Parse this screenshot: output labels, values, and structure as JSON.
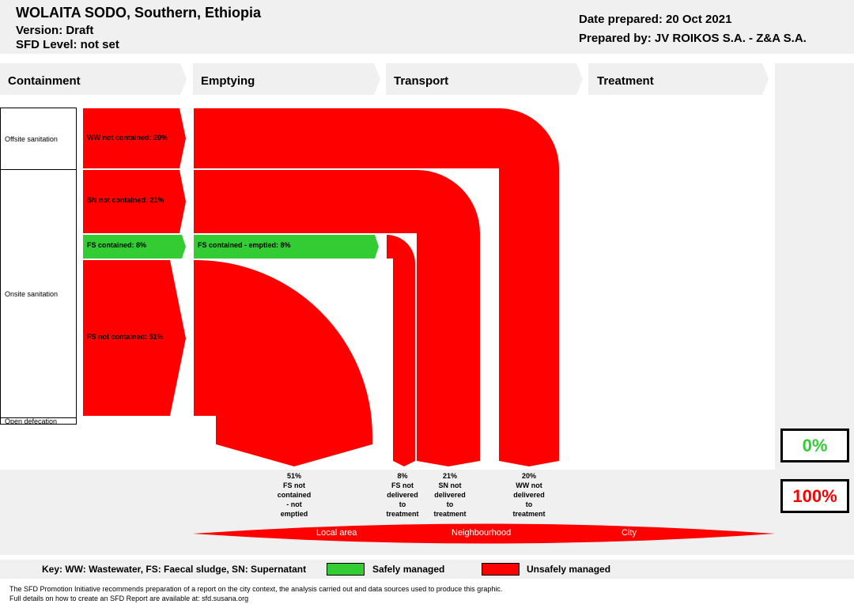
{
  "header": {
    "title": "WOLAITA SODO, Southern, Ethiopia",
    "version": "Version: Draft",
    "sfd_level": "SFD Level: not set",
    "date_prepared": "Date prepared: 20 Oct 2021",
    "prepared_by": "Prepared by: JV ROIKOS S.A. - Z&A S.A."
  },
  "stages": [
    "Containment",
    "Emptying",
    "Transport",
    "Treatment"
  ],
  "containment_categories": {
    "offsite": "Offsite sanitation",
    "onsite": "Onsite sanitation",
    "open_defecation": "Open defecation"
  },
  "flows": {
    "ww_not_contained": "WW not contained: 20%",
    "sn_not_contained": "SN not contained: 21%",
    "fs_contained": "FS contained: 8%",
    "fs_contained_emptied": "FS contained - emptied: 8%",
    "fs_not_contained": "FS not contained: 51%"
  },
  "end_labels": [
    {
      "pct": "51%",
      "lines": [
        "FS not",
        "contained",
        "- not",
        "emptied"
      ]
    },
    {
      "pct": "8%",
      "lines": [
        "FS not",
        "delivered",
        "to",
        "treatment"
      ]
    },
    {
      "pct": "21%",
      "lines": [
        "SN not",
        "delivered",
        "to",
        "treatment"
      ]
    },
    {
      "pct": "20%",
      "lines": [
        "WW not",
        "delivered",
        "to",
        "treatment"
      ]
    }
  ],
  "results": {
    "safely_managed": "0%",
    "unsafely_managed": "100%"
  },
  "scale": [
    "Local area",
    "Neighbourhood",
    "City"
  ],
  "key": {
    "abbreviations": "Key: WW: Wastewater, FS: Faecal sludge, SN: Supernatant",
    "safe": "Safely managed",
    "unsafe": "Unsafely managed"
  },
  "colors": {
    "safe": "#33cc33",
    "unsafe": "#ff0000",
    "band": "#f0f0f0"
  },
  "footer": {
    "line1": "The SFD Promotion Initiative recommends preparation of a report on the city context, the analysis carried out and data sources used to produce this graphic.",
    "line2": "Full details on how to create an SFD Report are available at: sfd.susana.org"
  }
}
